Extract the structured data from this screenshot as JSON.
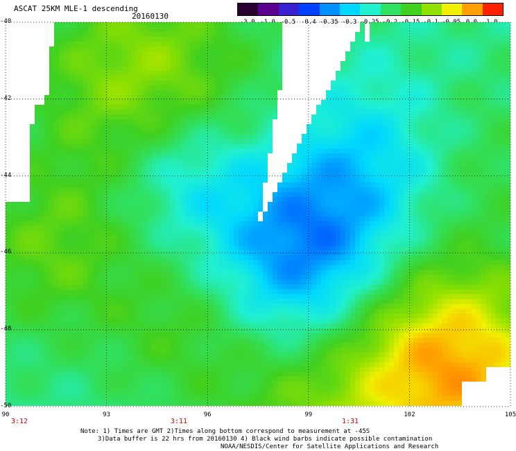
{
  "header": {
    "title": "ASCAT 25KM MLE-1 descending",
    "date": "20160130"
  },
  "colorbar": {
    "ticks": [
      "-3.0",
      "-1.0",
      "-0.5",
      "-0.4",
      "-0.35",
      "-0.3",
      "-0.25",
      "-0.2",
      "-0.15",
      "-0.1",
      "-0.05",
      "0.0",
      "1.0"
    ],
    "colors": [
      "#2a0030",
      "#5a0090",
      "#3a20d0",
      "#0040ff",
      "#0090ff",
      "#00d8ff",
      "#20f0d0",
      "#30e060",
      "#40d020",
      "#90e000",
      "#f0f000",
      "#ffa000",
      "#ff2000"
    ]
  },
  "map": {
    "lon_labels": [
      "90",
      "93",
      "96",
      "99",
      "102",
      "105"
    ],
    "lat_labels": [
      "-40",
      "-42",
      "-44",
      "-46",
      "-48",
      "-50"
    ],
    "times": [
      "3:12",
      "3:11",
      "1:31"
    ],
    "time_color": "#cc0000"
  },
  "notes": {
    "line1": "Note: 1) Times are GMT 2)Times along bottom correspond to measurement at -45S",
    "line2": "3)Data buffer is 22 hrs from 20160130 4) Black wind barbs indicate possible contamination",
    "line3": "NOAA/NESDIS/Center for Satellite Applications and Research"
  }
}
